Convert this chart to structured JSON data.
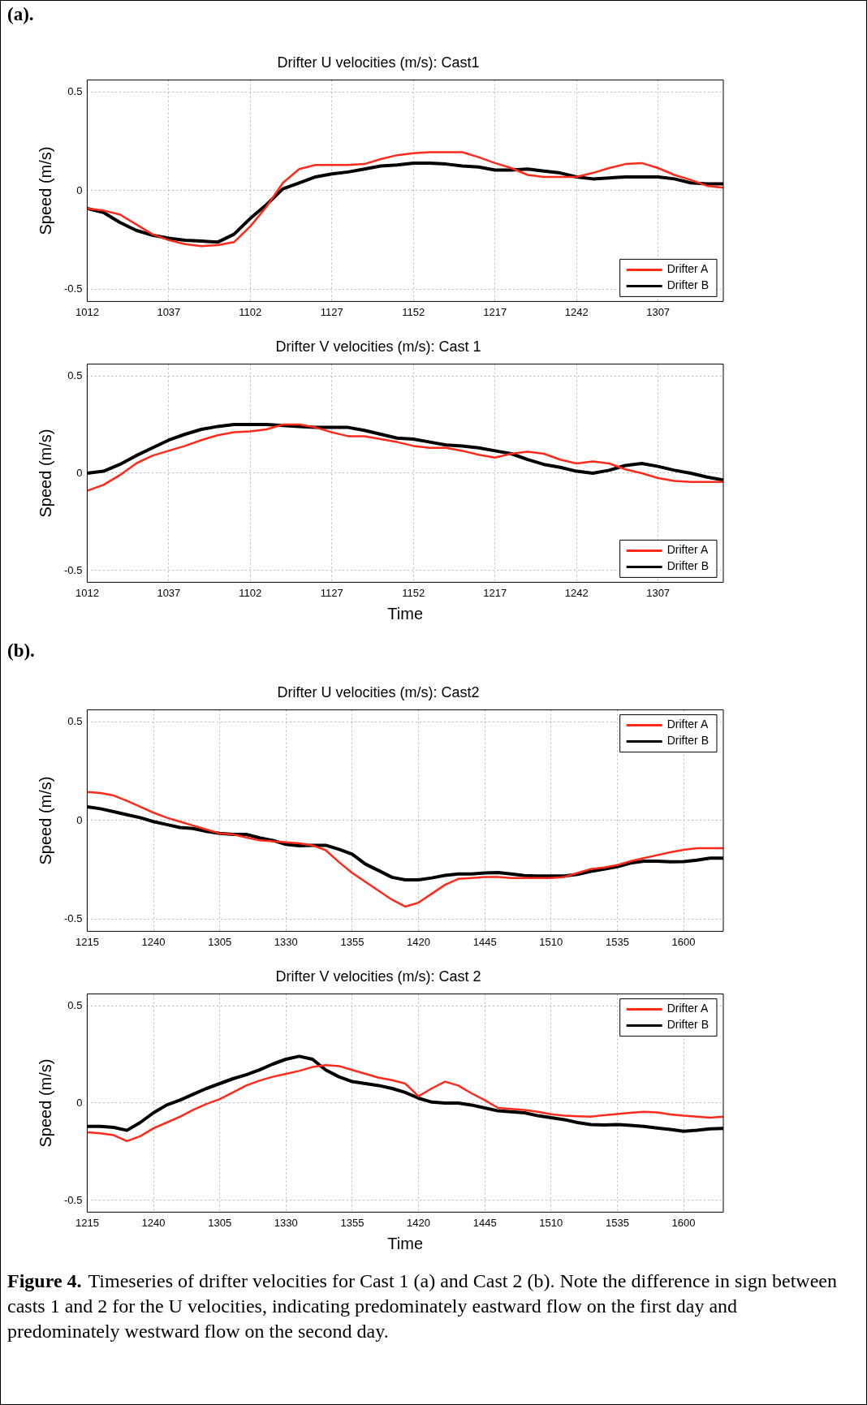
{
  "chart_data": [
    {
      "type": "line",
      "title": "Drifter U velocities (m/s): Cast1",
      "ylabel": "Speed (m/s)",
      "annotations": [
        "(a)."
      ],
      "categories": [
        "1012",
        null,
        null,
        null,
        null,
        "1037",
        null,
        null,
        null,
        null,
        "1102",
        null,
        null,
        null,
        null,
        "1127",
        null,
        null,
        null,
        null,
        "1152",
        null,
        null,
        null,
        null,
        "1217",
        null,
        null,
        null,
        null,
        "1242",
        null,
        null,
        null,
        null,
        "1307",
        null,
        null,
        null,
        null
      ],
      "series": [
        {
          "name": "Drifter A",
          "color": "#ff2a1a",
          "values": [
            -0.09,
            -0.1,
            -0.12,
            -0.17,
            -0.22,
            -0.25,
            -0.27,
            -0.28,
            -0.275,
            -0.26,
            -0.18,
            -0.08,
            0.04,
            0.11,
            0.13,
            0.13,
            0.13,
            0.135,
            0.16,
            0.18,
            0.19,
            0.195,
            0.195,
            0.195,
            0.17,
            0.14,
            0.115,
            0.08,
            0.07,
            0.07,
            0.07,
            0.09,
            0.115,
            0.135,
            0.14,
            0.115,
            0.08,
            0.055,
            0.025,
            0.015
          ]
        },
        {
          "name": "Drifter B",
          "color": "#000000",
          "values": [
            -0.09,
            -0.11,
            -0.16,
            -0.2,
            -0.225,
            -0.24,
            -0.25,
            -0.255,
            -0.26,
            -0.22,
            -0.14,
            -0.07,
            0.01,
            0.04,
            0.07,
            0.085,
            0.095,
            0.11,
            0.125,
            0.13,
            0.14,
            0.14,
            0.135,
            0.125,
            0.12,
            0.105,
            0.105,
            0.11,
            0.1,
            0.09,
            0.07,
            0.06,
            0.065,
            0.07,
            0.07,
            0.07,
            0.06,
            0.04,
            0.035,
            0.035
          ]
        }
      ],
      "ylim": [
        -0.56,
        0.56
      ],
      "yticks": [
        -0.5,
        0,
        0.5
      ],
      "grid": true,
      "legend": "bottom right"
    },
    {
      "type": "line",
      "title": "Drifter V velocities (m/s): Cast 1",
      "xlabel": "Time",
      "ylabel": "Speed (m/s)",
      "categories": [
        "1012",
        null,
        null,
        null,
        null,
        "1037",
        null,
        null,
        null,
        null,
        "1102",
        null,
        null,
        null,
        null,
        "1127",
        null,
        null,
        null,
        null,
        "1152",
        null,
        null,
        null,
        null,
        "1217",
        null,
        null,
        null,
        null,
        "1242",
        null,
        null,
        null,
        null,
        "1307",
        null,
        null,
        null,
        null
      ],
      "series": [
        {
          "name": "Drifter A",
          "color": "#ff2a1a",
          "values": [
            -0.09,
            -0.06,
            -0.01,
            0.05,
            0.09,
            0.115,
            0.14,
            0.17,
            0.195,
            0.21,
            0.215,
            0.225,
            0.25,
            0.25,
            0.235,
            0.21,
            0.19,
            0.19,
            0.175,
            0.16,
            0.14,
            0.13,
            0.13,
            0.115,
            0.095,
            0.08,
            0.1,
            0.11,
            0.1,
            0.07,
            0.05,
            0.06,
            0.05,
            0.02,
            0,
            -0.025,
            -0.04,
            -0.045,
            -0.045,
            -0.045
          ]
        },
        {
          "name": "Drifter B",
          "color": "#000000",
          "values": [
            0,
            0.01,
            0.045,
            0.09,
            0.13,
            0.17,
            0.2,
            0.225,
            0.24,
            0.25,
            0.25,
            0.25,
            0.245,
            0.24,
            0.235,
            0.235,
            0.235,
            0.22,
            0.2,
            0.18,
            0.175,
            0.16,
            0.145,
            0.14,
            0.13,
            0.115,
            0.1,
            0.07,
            0.045,
            0.03,
            0.01,
            0,
            0.015,
            0.04,
            0.05,
            0.035,
            0.015,
            0,
            -0.02,
            -0.035
          ]
        }
      ],
      "ylim": [
        -0.56,
        0.56
      ],
      "yticks": [
        -0.5,
        0,
        0.5
      ],
      "grid": true,
      "legend": "bottom right"
    },
    {
      "type": "line",
      "title": "Drifter U velocities (m/s): Cast2",
      "ylabel": "Speed (m/s)",
      "annotations": [
        "(b)."
      ],
      "categories": [
        "1215",
        null,
        null,
        null,
        null,
        "1240",
        null,
        null,
        null,
        null,
        "1305",
        null,
        null,
        null,
        null,
        "1330",
        null,
        null,
        null,
        null,
        "1355",
        null,
        null,
        null,
        null,
        "1420",
        null,
        null,
        null,
        null,
        "1445",
        null,
        null,
        null,
        null,
        "1510",
        null,
        null,
        null,
        null,
        "1535",
        null,
        null,
        null,
        null,
        "1600",
        null,
        null,
        null
      ],
      "series": [
        {
          "name": "Drifter A",
          "color": "#ff2a1a",
          "values": [
            0.145,
            0.14,
            0.127,
            0.1,
            0.07,
            0.04,
            0.015,
            -0.005,
            -0.025,
            -0.045,
            -0.065,
            -0.07,
            -0.085,
            -0.1,
            -0.105,
            -0.11,
            -0.115,
            -0.125,
            -0.15,
            -0.21,
            -0.265,
            -0.31,
            -0.355,
            -0.4,
            -0.435,
            -0.415,
            -0.37,
            -0.325,
            -0.295,
            -0.29,
            -0.285,
            -0.285,
            -0.29,
            -0.29,
            -0.29,
            -0.29,
            -0.285,
            -0.265,
            -0.245,
            -0.237,
            -0.225,
            -0.205,
            -0.19,
            -0.175,
            -0.16,
            -0.148,
            -0.14,
            -0.14,
            -0.14
          ]
        },
        {
          "name": "Drifter B",
          "color": "#000000",
          "values": [
            0.07,
            0.06,
            0.045,
            0.03,
            0.015,
            -0.005,
            -0.02,
            -0.035,
            -0.04,
            -0.055,
            -0.065,
            -0.07,
            -0.07,
            -0.087,
            -0.1,
            -0.12,
            -0.127,
            -0.125,
            -0.125,
            -0.145,
            -0.17,
            -0.22,
            -0.253,
            -0.287,
            -0.3,
            -0.3,
            -0.29,
            -0.277,
            -0.27,
            -0.27,
            -0.265,
            -0.263,
            -0.27,
            -0.278,
            -0.28,
            -0.28,
            -0.28,
            -0.272,
            -0.257,
            -0.245,
            -0.233,
            -0.215,
            -0.205,
            -0.205,
            -0.208,
            -0.207,
            -0.2,
            -0.19,
            -0.19
          ]
        }
      ],
      "ylim": [
        -0.56,
        0.56
      ],
      "yticks": [
        -0.5,
        0,
        0.5
      ],
      "grid": true,
      "legend": "top right"
    },
    {
      "type": "line",
      "title": "Drifter V velocities (m/s): Cast 2",
      "xlabel": "Time",
      "ylabel": "Speed (m/s)",
      "annotations": [
        "Figure 4.",
        "Timeseries of drifter velocities for Cast 1 (a) and Cast 2 (b).  Note the difference in sign between casts 1 and 2 for the U velocities, indicating predominately eastward flow on the first day and predominately westward flow on the second day."
      ],
      "categories": [
        "1215",
        null,
        null,
        null,
        null,
        "1240",
        null,
        null,
        null,
        null,
        "1305",
        null,
        null,
        null,
        null,
        "1330",
        null,
        null,
        null,
        null,
        "1355",
        null,
        null,
        null,
        null,
        "1420",
        null,
        null,
        null,
        null,
        "1445",
        null,
        null,
        null,
        null,
        "1510",
        null,
        null,
        null,
        null,
        "1535",
        null,
        null,
        null,
        null,
        "1600",
        null,
        null,
        null
      ],
      "series": [
        {
          "name": "Drifter A",
          "color": "#ff2a1a",
          "values": [
            -0.15,
            -0.155,
            -0.165,
            -0.195,
            -0.17,
            -0.13,
            -0.1,
            -0.07,
            -0.035,
            -0.005,
            0.02,
            0.055,
            0.09,
            0.115,
            0.135,
            0.15,
            0.165,
            0.185,
            0.195,
            0.19,
            0.17,
            0.15,
            0.13,
            0.118,
            0.1,
            0.035,
            0.075,
            0.11,
            0.09,
            0.05,
            0.015,
            -0.025,
            -0.03,
            -0.035,
            -0.045,
            -0.057,
            -0.065,
            -0.068,
            -0.07,
            -0.062,
            -0.056,
            -0.05,
            -0.045,
            -0.048,
            -0.058,
            -0.065,
            -0.07,
            -0.075,
            -0.07
          ]
        },
        {
          "name": "Drifter B",
          "color": "#000000",
          "values": [
            -0.12,
            -0.12,
            -0.125,
            -0.14,
            -0.1,
            -0.05,
            -0.01,
            0.015,
            0.045,
            0.075,
            0.1,
            0.125,
            0.145,
            0.17,
            0.2,
            0.225,
            0.24,
            0.225,
            0.17,
            0.135,
            0.11,
            0.1,
            0.09,
            0.075,
            0.055,
            0.025,
            0.005,
            0,
            0,
            -0.01,
            -0.025,
            -0.04,
            -0.045,
            -0.05,
            -0.065,
            -0.075,
            -0.085,
            -0.1,
            -0.11,
            -0.112,
            -0.11,
            -0.115,
            -0.12,
            -0.128,
            -0.135,
            -0.145,
            -0.14,
            -0.132,
            -0.13
          ]
        }
      ],
      "ylim": [
        -0.56,
        0.56
      ],
      "yticks": [
        -0.5,
        0,
        0.5
      ],
      "grid": true,
      "legend": "top right"
    }
  ]
}
